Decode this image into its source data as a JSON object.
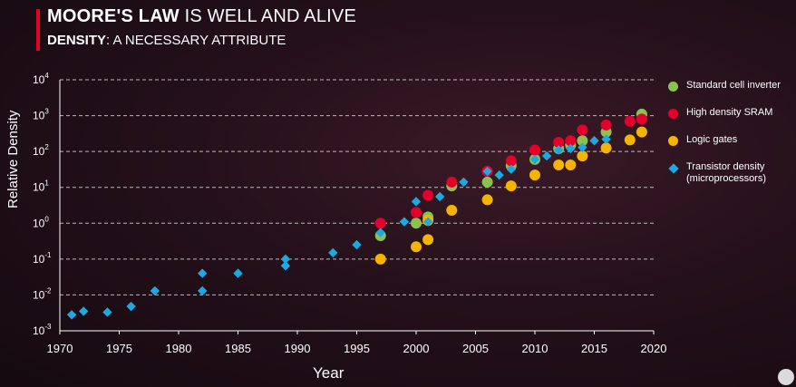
{
  "header": {
    "title_bold": "MOORE'S LAW",
    "title_rest": " IS WELL AND ALIVE",
    "subtitle_bold": "DENSITY",
    "subtitle_rest": ": A NECESSARY ATTRIBUTE",
    "accent_color": "#e4002b"
  },
  "chart_data": {
    "type": "scatter",
    "title": "",
    "xlabel": "Year",
    "ylabel": "Relative Density",
    "xlim": [
      1970,
      2020
    ],
    "ylim": [
      0.001,
      10000
    ],
    "yscale": "log",
    "grid": "horizontal dashed",
    "legend_position": "right",
    "x_ticks": [
      "1970",
      "1975",
      "1980",
      "1985",
      "1990",
      "1995",
      "2000",
      "2005",
      "2010",
      "2015",
      "2020"
    ],
    "y_ticks": [
      {
        "base": "10",
        "exp": "-3"
      },
      {
        "base": "10",
        "exp": "-2"
      },
      {
        "base": "10",
        "exp": "-1"
      },
      {
        "base": "10",
        "exp": "0"
      },
      {
        "base": "10",
        "exp": "1"
      },
      {
        "base": "10",
        "exp": "2"
      },
      {
        "base": "10",
        "exp": "3"
      },
      {
        "base": "10",
        "exp": "4"
      }
    ],
    "series": [
      {
        "name": "Standard cell inverter",
        "color": "#8cc152",
        "marker": "circle",
        "points": [
          [
            1997,
            0.45
          ],
          [
            2000,
            1.0
          ],
          [
            2001,
            1.5
          ],
          [
            2003,
            11
          ],
          [
            2006,
            14
          ],
          [
            2008,
            40
          ],
          [
            2010,
            60
          ],
          [
            2012,
            120
          ],
          [
            2013,
            150
          ],
          [
            2014,
            200
          ],
          [
            2016,
            350
          ],
          [
            2019,
            1100
          ]
        ]
      },
      {
        "name": "High density SRAM",
        "color": "#e4002b",
        "marker": "circle",
        "points": [
          [
            1997,
            1.0
          ],
          [
            2000,
            2.0
          ],
          [
            2001,
            6.0
          ],
          [
            2003,
            14
          ],
          [
            2006,
            28
          ],
          [
            2008,
            55
          ],
          [
            2010,
            110
          ],
          [
            2012,
            180
          ],
          [
            2013,
            200
          ],
          [
            2014,
            400
          ],
          [
            2016,
            550
          ],
          [
            2018,
            700
          ],
          [
            2019,
            800
          ]
        ]
      },
      {
        "name": "Logic gates",
        "color": "#f5b400",
        "marker": "circle",
        "points": [
          [
            1997,
            0.1
          ],
          [
            2000,
            0.22
          ],
          [
            2001,
            0.35
          ],
          [
            2001,
            1.2
          ],
          [
            2003,
            2.3
          ],
          [
            2006,
            4.5
          ],
          [
            2008,
            11
          ],
          [
            2010,
            22
          ],
          [
            2012,
            42
          ],
          [
            2013,
            42
          ],
          [
            2014,
            75
          ],
          [
            2016,
            125
          ],
          [
            2018,
            210
          ],
          [
            2019,
            350
          ]
        ]
      },
      {
        "name": "Transistor density (microprocessors)",
        "color": "#1ea8e0",
        "marker": "diamond",
        "points": [
          [
            1971,
            0.0028
          ],
          [
            1972,
            0.0035
          ],
          [
            1974,
            0.0033
          ],
          [
            1976,
            0.0048
          ],
          [
            1978,
            0.013
          ],
          [
            1982,
            0.04
          ],
          [
            1982,
            0.013
          ],
          [
            1985,
            0.04
          ],
          [
            1989,
            0.1
          ],
          [
            1989,
            0.065
          ],
          [
            1993,
            0.15
          ],
          [
            1995,
            0.25
          ],
          [
            1997,
            0.55
          ],
          [
            1999,
            1.1
          ],
          [
            2000,
            4.0
          ],
          [
            2001,
            1.1
          ],
          [
            2002,
            5.5
          ],
          [
            2004,
            14
          ],
          [
            2006,
            28
          ],
          [
            2007,
            22
          ],
          [
            2008,
            32
          ],
          [
            2010,
            60
          ],
          [
            2011,
            75
          ],
          [
            2012,
            110
          ],
          [
            2013,
            120
          ],
          [
            2014,
            130
          ],
          [
            2015,
            200
          ],
          [
            2016,
            220
          ]
        ]
      }
    ]
  }
}
